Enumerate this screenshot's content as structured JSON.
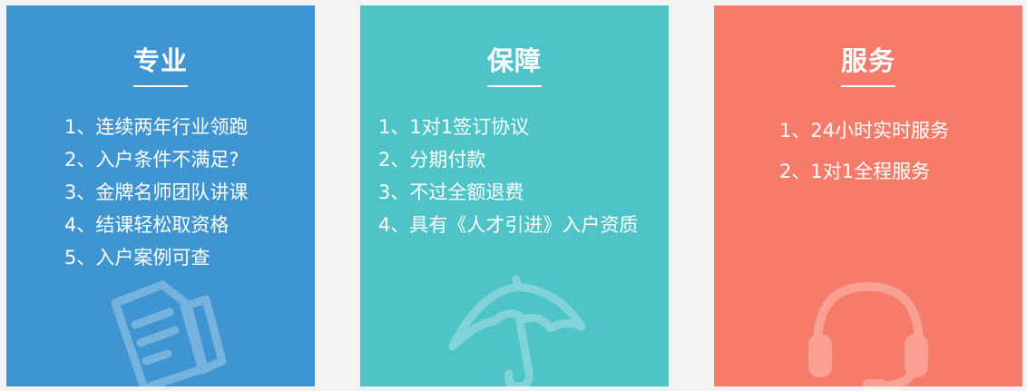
{
  "cards": [
    {
      "title": "专业",
      "icon": "document-pencil-icon",
      "items": [
        "1、连续两年行业领跑",
        "2、入户条件不满足?",
        "3、金牌名师团队讲课",
        "4、结课轻松取资格",
        "5、入户案例可查"
      ]
    },
    {
      "title": "保障",
      "icon": "umbrella-icon",
      "items": [
        "1、1对1签订协议",
        "2、分期付款",
        "3、不过全额退费",
        "4、具有《人才引进》入户资质"
      ]
    },
    {
      "title": "服务",
      "icon": "headset-icon",
      "items": [
        "1、24小时实时服务",
        "2、1对1全程服务"
      ]
    }
  ],
  "colors": {
    "card1": "#3f95d2",
    "card2": "#4fc4c8",
    "card3": "#f77b6a",
    "background": "#f3f3f3"
  }
}
